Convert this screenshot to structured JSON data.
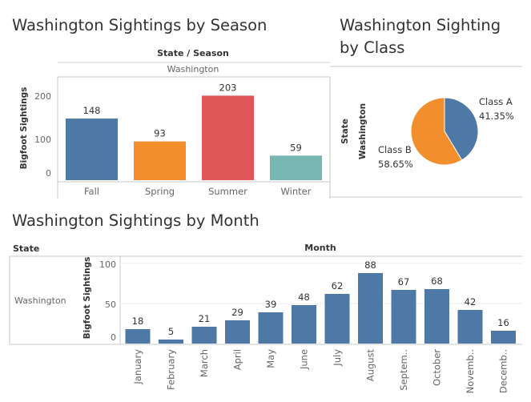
{
  "season": {
    "title": "Washington Sightings by Season",
    "header": "State / Season",
    "state": "Washington",
    "ylabel": "Bigfoot Sightings",
    "ticks": [
      "0",
      "100",
      "200"
    ]
  },
  "klass": {
    "title_line1": "Washington Sighting",
    "title_line2": "by Class",
    "state_header": "State",
    "state": "Washington"
  },
  "month": {
    "title": "Washington Sightings by Month",
    "state_header": "State",
    "header": "Month",
    "state": "Washington",
    "ylabel": "Bigfoot Sightings",
    "ticks": [
      "0",
      "50",
      "100"
    ]
  },
  "chart_data": [
    {
      "type": "bar",
      "title": "Washington Sightings by Season",
      "categories": [
        "Fall",
        "Spring",
        "Summer",
        "Winter"
      ],
      "values": [
        148,
        93,
        203,
        59
      ],
      "colors": [
        "#4e79a7",
        "#f28e2b",
        "#e15759",
        "#76b7b2"
      ],
      "xlabel": "",
      "ylabel": "Bigfoot Sightings",
      "ylim": [
        0,
        230
      ],
      "grid": false
    },
    {
      "type": "pie",
      "title": "Washington Sighting by Class",
      "categories": [
        "Class A",
        "Class B"
      ],
      "labels": [
        "41.35%",
        "58.65%"
      ],
      "values": [
        41.35,
        58.65
      ],
      "colors": [
        "#4e79a7",
        "#f28e2b"
      ]
    },
    {
      "type": "bar",
      "title": "Washington Sightings by Month",
      "categories": [
        "January",
        "February",
        "March",
        "April",
        "May",
        "June",
        "July",
        "August",
        "Septem..",
        "October",
        "Novemb..",
        "Decemb.."
      ],
      "values": [
        18,
        5,
        21,
        29,
        39,
        48,
        62,
        88,
        67,
        68,
        42,
        16
      ],
      "color": "#4e79a7",
      "xlabel": "",
      "ylabel": "Bigfoot Sightings",
      "ylim": [
        0,
        108
      ],
      "grid": true
    }
  ]
}
